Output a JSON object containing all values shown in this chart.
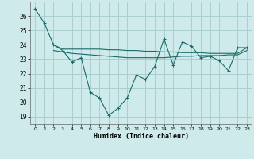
{
  "xlabel": "Humidex (Indice chaleur)",
  "ylabel": "",
  "xlim": [
    -0.5,
    23.5
  ],
  "ylim": [
    18.5,
    27
  ],
  "yticks": [
    19,
    20,
    21,
    22,
    23,
    24,
    25,
    26
  ],
  "xticks": [
    0,
    1,
    2,
    3,
    4,
    5,
    6,
    7,
    8,
    9,
    10,
    11,
    12,
    13,
    14,
    15,
    16,
    17,
    18,
    19,
    20,
    21,
    22,
    23
  ],
  "background_color": "#ceeaea",
  "grid_color": "#aacece",
  "line_color": "#1a6b6b",
  "series1_x": [
    0,
    1,
    2,
    3,
    4,
    5,
    6,
    7,
    8,
    9,
    10,
    11,
    12,
    13,
    14,
    15,
    16,
    17,
    18,
    19,
    20,
    21,
    22,
    23
  ],
  "series1_y": [
    26.5,
    25.5,
    24.0,
    23.6,
    22.8,
    23.1,
    20.7,
    20.3,
    19.1,
    19.6,
    20.3,
    21.9,
    21.6,
    22.5,
    24.4,
    22.6,
    24.2,
    23.9,
    23.1,
    23.2,
    22.9,
    22.2,
    23.8,
    23.8
  ],
  "series2_x": [
    2,
    3,
    4,
    5,
    6,
    7,
    8,
    9,
    10,
    11,
    12,
    13,
    14,
    15,
    16,
    17,
    18,
    19,
    20,
    21,
    22,
    23
  ],
  "series2_y": [
    24.0,
    23.7,
    23.7,
    23.7,
    23.7,
    23.7,
    23.65,
    23.65,
    23.6,
    23.6,
    23.55,
    23.55,
    23.5,
    23.5,
    23.45,
    23.45,
    23.45,
    23.4,
    23.4,
    23.4,
    23.4,
    23.8
  ],
  "series3_x": [
    2,
    3,
    4,
    5,
    6,
    7,
    8,
    9,
    10,
    11,
    12,
    13,
    14,
    15,
    16,
    17,
    18,
    19,
    20,
    21,
    22,
    23
  ],
  "series3_y": [
    23.6,
    23.5,
    23.4,
    23.35,
    23.3,
    23.25,
    23.2,
    23.15,
    23.1,
    23.1,
    23.1,
    23.1,
    23.1,
    23.15,
    23.2,
    23.2,
    23.25,
    23.25,
    23.25,
    23.3,
    23.3,
    23.6
  ]
}
